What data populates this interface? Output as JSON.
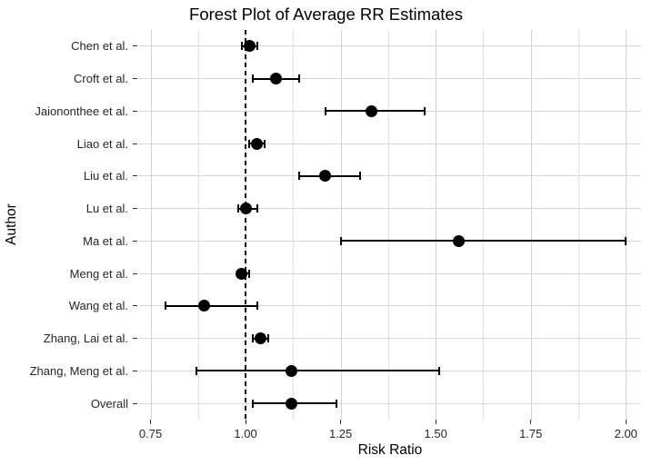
{
  "chart_data": {
    "type": "forest-dot-ci",
    "title": "Forest Plot of Average RR Estimates",
    "xlabel": "Risk Ratio",
    "ylabel": "Author",
    "grid": "on",
    "legend": "none",
    "x_axis": {
      "min": 0.72,
      "max": 2.04,
      "major_ticks": [
        {
          "value": 0.75,
          "label": "0.75"
        },
        {
          "value": 1.0,
          "label": "1.00"
        },
        {
          "value": 1.25,
          "label": "1.25"
        },
        {
          "value": 1.5,
          "label": "1.50"
        },
        {
          "value": 1.75,
          "label": "1.75"
        },
        {
          "value": 2.0,
          "label": "2.00"
        }
      ],
      "minor_ticks": [
        0.875,
        1.125,
        1.375,
        1.625,
        1.875
      ]
    },
    "reference_line": {
      "value": 1.0,
      "style": "dashed",
      "color": "#000000"
    },
    "rows": [
      {
        "author": "Chen et al.",
        "rr": 1.01,
        "ci_lower": 0.99,
        "ci_upper": 1.03
      },
      {
        "author": "Croft et al.",
        "rr": 1.08,
        "ci_lower": 1.02,
        "ci_upper": 1.14
      },
      {
        "author": "Jaiononthee et al.",
        "rr": 1.33,
        "ci_lower": 1.21,
        "ci_upper": 1.47
      },
      {
        "author": "Liao et al.",
        "rr": 1.03,
        "ci_lower": 1.01,
        "ci_upper": 1.05
      },
      {
        "author": "Liu et al.",
        "rr": 1.21,
        "ci_lower": 1.14,
        "ci_upper": 1.3
      },
      {
        "author": "Lu et al.",
        "rr": 1.0,
        "ci_lower": 0.98,
        "ci_upper": 1.03
      },
      {
        "author": "Ma et al.",
        "rr": 1.56,
        "ci_lower": 1.25,
        "ci_upper": 2.0
      },
      {
        "author": "Meng et al.",
        "rr": 0.99,
        "ci_lower": 0.98,
        "ci_upper": 1.01
      },
      {
        "author": "Wang et al.",
        "rr": 0.89,
        "ci_lower": 0.79,
        "ci_upper": 1.03
      },
      {
        "author": "Zhang, Lai et al.",
        "rr": 1.04,
        "ci_lower": 1.02,
        "ci_upper": 1.06
      },
      {
        "author": "Zhang, Meng et al.",
        "rr": 1.12,
        "ci_lower": 0.87,
        "ci_upper": 1.51
      },
      {
        "author": "Overall",
        "rr": 1.12,
        "ci_lower": 1.02,
        "ci_upper": 1.24
      }
    ],
    "colors": {
      "point": "#000000",
      "ci_line": "#000000",
      "grid_major": "#d2d2d2",
      "grid_minor": "#e0e0e0",
      "axis_text": "#262626",
      "tick_mark": "#333333",
      "background": "#ffffff"
    }
  }
}
